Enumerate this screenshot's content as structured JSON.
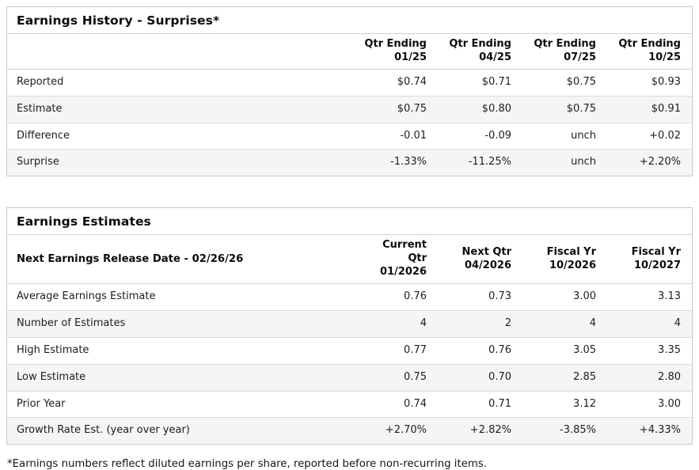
{
  "colors": {
    "positive": "#1e7d5a",
    "negative": "#c41f3e"
  },
  "history": {
    "title": "Earnings History - Surprises*",
    "header_lead": "",
    "columns": [
      {
        "line1": "Qtr Ending",
        "line2": "01/25"
      },
      {
        "line1": "Qtr Ending",
        "line2": "04/25"
      },
      {
        "line1": "Qtr Ending",
        "line2": "07/25"
      },
      {
        "line1": "Qtr Ending",
        "line2": "10/25"
      }
    ],
    "rows": [
      {
        "label": "Reported",
        "cells": [
          {
            "text": "$0.74",
            "tone": "normal"
          },
          {
            "text": "$0.71",
            "tone": "normal"
          },
          {
            "text": "$0.75",
            "tone": "normal"
          },
          {
            "text": "$0.93",
            "tone": "normal"
          }
        ]
      },
      {
        "label": "Estimate",
        "cells": [
          {
            "text": "$0.75",
            "tone": "normal"
          },
          {
            "text": "$0.80",
            "tone": "normal"
          },
          {
            "text": "$0.75",
            "tone": "normal"
          },
          {
            "text": "$0.91",
            "tone": "normal"
          }
        ]
      },
      {
        "label": "Difference",
        "cells": [
          {
            "text": "-0.01",
            "tone": "neg"
          },
          {
            "text": "-0.09",
            "tone": "neg"
          },
          {
            "text": "unch",
            "tone": "pos"
          },
          {
            "text": "+0.02",
            "tone": "pos"
          }
        ]
      },
      {
        "label": "Surprise",
        "cells": [
          {
            "text": "-1.33%",
            "tone": "neg"
          },
          {
            "text": "-11.25%",
            "tone": "neg"
          },
          {
            "text": "unch",
            "tone": "pos"
          },
          {
            "text": "+2.20%",
            "tone": "pos"
          }
        ]
      }
    ]
  },
  "estimates": {
    "title": "Earnings Estimates",
    "header_lead": "Next Earnings Release Date - 02/26/26",
    "columns": [
      {
        "line1": "Current Qtr",
        "line2": "01/2026"
      },
      {
        "line1": "Next Qtr",
        "line2": "04/2026"
      },
      {
        "line1": "Fiscal Yr",
        "line2": "10/2026"
      },
      {
        "line1": "Fiscal Yr",
        "line2": "10/2027"
      }
    ],
    "rows": [
      {
        "label": "Average Earnings Estimate",
        "cells": [
          {
            "text": "0.76",
            "tone": "normal"
          },
          {
            "text": "0.73",
            "tone": "normal"
          },
          {
            "text": "3.00",
            "tone": "normal"
          },
          {
            "text": "3.13",
            "tone": "normal"
          }
        ]
      },
      {
        "label": "Number of Estimates",
        "cells": [
          {
            "text": "4",
            "tone": "normal"
          },
          {
            "text": "2",
            "tone": "normal"
          },
          {
            "text": "4",
            "tone": "normal"
          },
          {
            "text": "4",
            "tone": "normal"
          }
        ]
      },
      {
        "label": "High Estimate",
        "cells": [
          {
            "text": "0.77",
            "tone": "normal"
          },
          {
            "text": "0.76",
            "tone": "normal"
          },
          {
            "text": "3.05",
            "tone": "normal"
          },
          {
            "text": "3.35",
            "tone": "normal"
          }
        ]
      },
      {
        "label": "Low Estimate",
        "cells": [
          {
            "text": "0.75",
            "tone": "normal"
          },
          {
            "text": "0.70",
            "tone": "normal"
          },
          {
            "text": "2.85",
            "tone": "normal"
          },
          {
            "text": "2.80",
            "tone": "normal"
          }
        ]
      },
      {
        "label": "Prior Year",
        "cells": [
          {
            "text": "0.74",
            "tone": "normal"
          },
          {
            "text": "0.71",
            "tone": "normal"
          },
          {
            "text": "3.12",
            "tone": "normal"
          },
          {
            "text": "3.00",
            "tone": "normal"
          }
        ]
      },
      {
        "label": "Growth Rate Est. (year over year)",
        "cells": [
          {
            "text": "+2.70%",
            "tone": "pos"
          },
          {
            "text": "+2.82%",
            "tone": "pos"
          },
          {
            "text": "-3.85%",
            "tone": "neg"
          },
          {
            "text": "+4.33%",
            "tone": "pos"
          }
        ]
      }
    ]
  },
  "footnote": "*Earnings numbers reflect diluted earnings per share, reported before non-recurring items."
}
